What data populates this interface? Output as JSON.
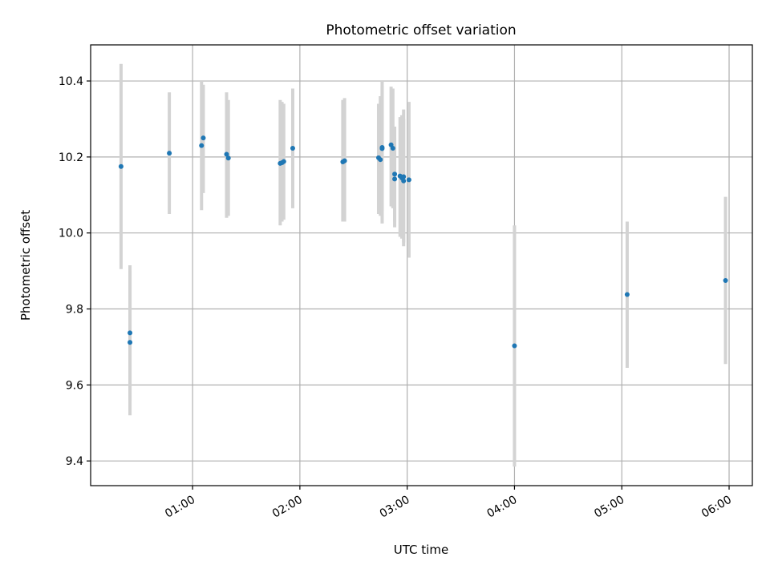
{
  "chart_data": {
    "type": "scatter",
    "title": "Photometric offset variation",
    "xlabel": "UTC time",
    "ylabel": "Photometric offset",
    "xlim": [
      "00:03",
      "06:13"
    ],
    "ylim": [
      9.335,
      10.495
    ],
    "xticks": [
      "01:00",
      "02:00",
      "03:00",
      "04:00",
      "05:00",
      "06:00"
    ],
    "yticks": [
      9.4,
      9.6,
      9.8,
      10.0,
      10.2,
      10.4
    ],
    "ytick_labels": [
      "9.4",
      "9.6",
      "9.8",
      "10.0",
      "10.2",
      "10.4"
    ],
    "grid": true,
    "colors": {
      "points": "#1f77b4",
      "errorbars": "#d3d3d3",
      "grid": "#b0b0b0"
    },
    "series": [
      {
        "points": [
          {
            "t": "00:20",
            "y": 10.175,
            "lo": 9.905,
            "hi": 10.445
          },
          {
            "t": "00:25",
            "y": 9.737,
            "lo": 9.56,
            "hi": 9.915
          },
          {
            "t": "00:25",
            "y": 9.712,
            "lo": 9.52,
            "hi": 9.9
          },
          {
            "t": "00:47",
            "y": 10.21,
            "lo": 10.05,
            "hi": 10.37
          },
          {
            "t": "01:05",
            "y": 10.23,
            "lo": 10.06,
            "hi": 10.4
          },
          {
            "t": "01:06",
            "y": 10.25,
            "lo": 10.105,
            "hi": 10.39
          },
          {
            "t": "01:19",
            "y": 10.207,
            "lo": 10.04,
            "hi": 10.37
          },
          {
            "t": "01:20",
            "y": 10.197,
            "lo": 10.045,
            "hi": 10.35
          },
          {
            "t": "01:49",
            "y": 10.183,
            "lo": 10.02,
            "hi": 10.35
          },
          {
            "t": "01:50",
            "y": 10.185,
            "lo": 10.03,
            "hi": 10.345
          },
          {
            "t": "01:51",
            "y": 10.188,
            "lo": 10.035,
            "hi": 10.34
          },
          {
            "t": "01:56",
            "y": 10.223,
            "lo": 10.065,
            "hi": 10.38
          },
          {
            "t": "02:24",
            "y": 10.187,
            "lo": 10.03,
            "hi": 10.35
          },
          {
            "t": "02:25",
            "y": 10.19,
            "lo": 10.03,
            "hi": 10.355
          },
          {
            "t": "02:44",
            "y": 10.198,
            "lo": 10.05,
            "hi": 10.34
          },
          {
            "t": "02:45",
            "y": 10.193,
            "lo": 10.045,
            "hi": 10.36
          },
          {
            "t": "02:46",
            "y": 10.225,
            "lo": 10.025,
            "hi": 10.4
          },
          {
            "t": "02:46",
            "y": 10.222,
            "lo": 10.06,
            "hi": 10.385
          },
          {
            "t": "02:51",
            "y": 10.232,
            "lo": 10.07,
            "hi": 10.385
          },
          {
            "t": "02:52",
            "y": 10.223,
            "lo": 10.065,
            "hi": 10.38
          },
          {
            "t": "02:53",
            "y": 10.155,
            "lo": 10.015,
            "hi": 10.28
          },
          {
            "t": "02:53",
            "y": 10.142,
            "lo": 10.03,
            "hi": 10.25
          },
          {
            "t": "02:56",
            "y": 10.15,
            "lo": 9.99,
            "hi": 10.305
          },
          {
            "t": "02:57",
            "y": 10.145,
            "lo": 9.985,
            "hi": 10.31
          },
          {
            "t": "02:58",
            "y": 10.148,
            "lo": 9.975,
            "hi": 10.325
          },
          {
            "t": "02:58",
            "y": 10.137,
            "lo": 9.965,
            "hi": 10.3
          },
          {
            "t": "03:01",
            "y": 10.14,
            "lo": 9.935,
            "hi": 10.345
          },
          {
            "t": "04:00",
            "y": 9.703,
            "lo": 9.385,
            "hi": 10.02
          },
          {
            "t": "05:03",
            "y": 9.838,
            "lo": 9.645,
            "hi": 10.03
          },
          {
            "t": "05:58",
            "y": 9.875,
            "lo": 9.655,
            "hi": 10.095
          }
        ]
      }
    ]
  }
}
